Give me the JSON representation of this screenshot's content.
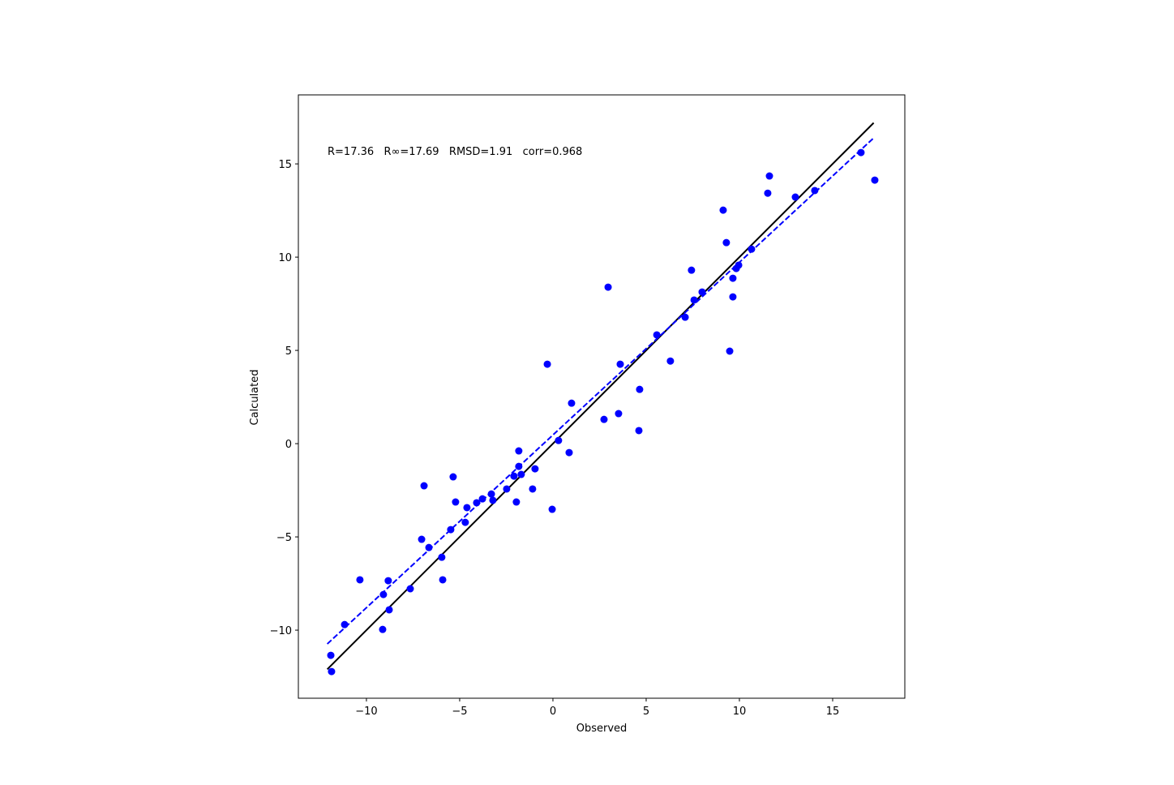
{
  "chart_data": {
    "type": "scatter",
    "annotation": "R=17.36   R∞=17.69   RMSD=1.91   corr=0.968",
    "annotation_color": "#0000ff",
    "xlabel": "Observed",
    "ylabel": "Calculated",
    "xlim": [
      -13.65,
      18.87
    ],
    "ylim": [
      -13.65,
      18.7
    ],
    "xticks": [
      {
        "value": -10,
        "label": "−10"
      },
      {
        "value": -5,
        "label": "−5"
      },
      0,
      5,
      10,
      15
    ],
    "yticks": [
      {
        "value": -10,
        "label": "−10"
      },
      {
        "value": -5,
        "label": "−5"
      },
      0,
      5,
      10,
      15
    ],
    "color": "#0000ff",
    "x": [
      -11.87,
      -11.91,
      -11.17,
      -10.35,
      -9.13,
      -9.09,
      -8.83,
      -8.78,
      -7.65,
      -7.04,
      -6.91,
      -6.65,
      -5.96,
      -5.91,
      -5.48,
      -5.35,
      -5.22,
      -4.7,
      -4.61,
      -4.09,
      -3.78,
      -3.3,
      -3.22,
      -2.48,
      -2.09,
      -1.96,
      -1.83,
      -1.83,
      -1.7,
      -1.09,
      -0.96,
      -0.3,
      -0.04,
      0.3,
      0.87,
      1.0,
      2.74,
      2.96,
      3.52,
      3.61,
      4.61,
      4.65,
      5.57,
      6.3,
      7.09,
      7.43,
      7.57,
      8.0,
      9.13,
      9.3,
      9.48,
      9.65,
      9.65,
      9.83,
      9.96,
      10.65,
      11.52,
      11.61,
      13.0,
      14.04,
      16.52,
      17.26
    ],
    "y": [
      -12.22,
      -11.35,
      -9.7,
      -7.3,
      -9.96,
      -8.09,
      -7.35,
      -8.91,
      -7.78,
      -5.13,
      -2.26,
      -5.57,
      -6.09,
      -7.3,
      -4.61,
      -1.78,
      -3.13,
      -4.22,
      -3.43,
      -3.17,
      -2.96,
      -2.7,
      -3.04,
      -2.43,
      -1.74,
      -3.13,
      -0.39,
      -1.22,
      -1.65,
      -2.43,
      -1.35,
      4.26,
      -3.52,
      0.17,
      -0.48,
      2.17,
      1.3,
      8.39,
      1.61,
      4.26,
      0.7,
      2.91,
      5.83,
      4.43,
      6.78,
      9.3,
      7.7,
      8.13,
      12.52,
      10.78,
      4.96,
      8.87,
      7.87,
      9.39,
      9.57,
      10.43,
      13.43,
      14.35,
      13.22,
      13.57,
      15.61,
      14.13
    ],
    "lines": [
      {
        "x": [
          -12.1,
          17.2
        ],
        "y": [
          -12.1,
          17.2
        ],
        "color": "#000000",
        "dashed": false
      },
      {
        "x": [
          -12.1,
          17.2
        ],
        "y": [
          -10.74,
          16.39
        ],
        "color": "#0000ff",
        "dashed": true
      }
    ]
  }
}
